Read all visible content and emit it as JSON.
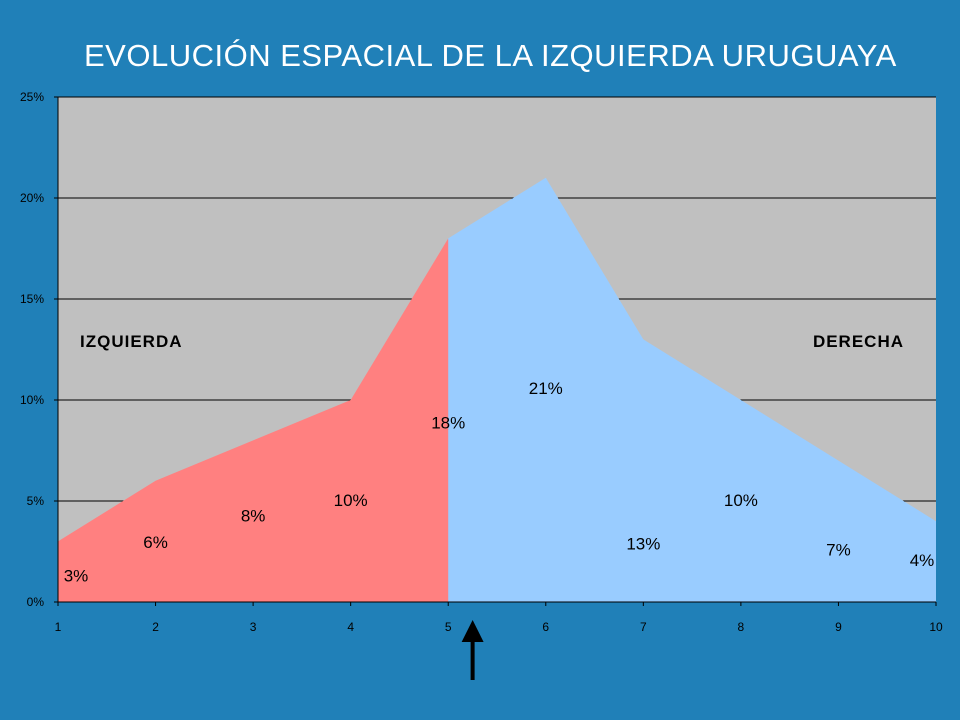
{
  "title": "EVOLUCIÓN ESPACIAL DE LA IZQUIERDA URUGUAYA",
  "chart_data": {
    "type": "area",
    "title": "EVOLUCIÓN ESPACIAL DE LA IZQUIERDA URUGUAYA",
    "x": [
      1,
      2,
      3,
      4,
      5,
      6,
      7,
      8,
      9,
      10
    ],
    "xlim": [
      1,
      10
    ],
    "ylim": [
      0,
      25
    ],
    "yticks": [
      "0%",
      "5%",
      "10%",
      "15%",
      "20%",
      "25%"
    ],
    "xticks": [
      "1",
      "2",
      "3",
      "4",
      "5",
      "6",
      "7",
      "8",
      "9",
      "10"
    ],
    "grid": true,
    "series": [
      {
        "x": [
          1,
          2,
          3,
          4,
          5,
          6
        ],
        "values": [
          3,
          6,
          8,
          10,
          18,
          0
        ],
        "color": "#ff8080"
      },
      {
        "x": [
          5,
          6,
          7,
          8,
          9,
          10
        ],
        "values": [
          18,
          21,
          13,
          10,
          7,
          4
        ],
        "color": "#99ccff"
      }
    ],
    "data_labels": [
      "3%",
      "6%",
      "8%",
      "10%",
      "18%",
      "21%",
      "13%",
      "10%",
      "7%",
      "4%"
    ],
    "annotations": [
      "IZQUIERDA",
      "DERECHA"
    ],
    "arrow_x": 5.25,
    "plot_background": "#c0c0c0"
  }
}
